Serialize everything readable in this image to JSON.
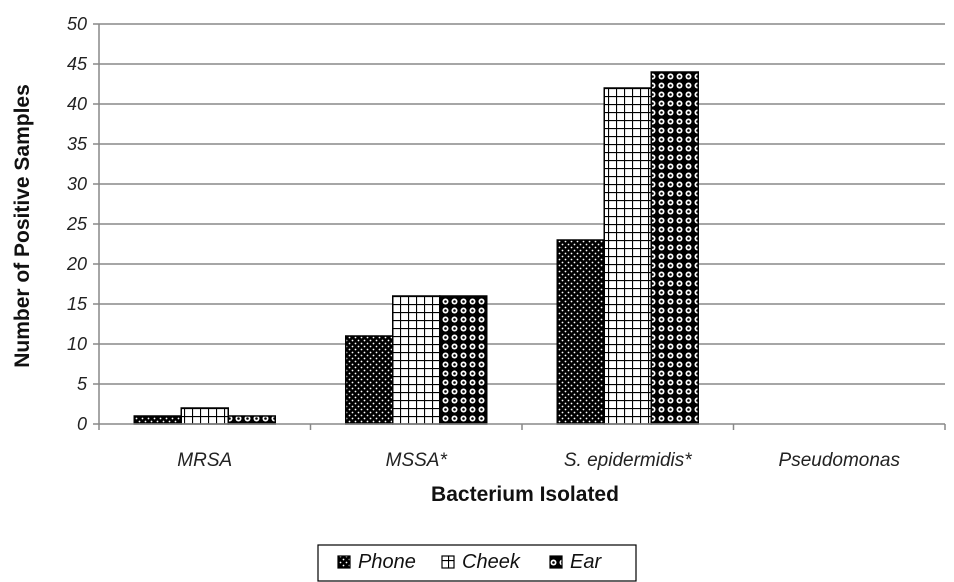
{
  "chart_data": {
    "type": "bar",
    "title": "",
    "xlabel": "Bacterium Isolated",
    "ylabel": "Number of Positive Samples",
    "categories": [
      "MRSA",
      "MSSA*",
      "S. epidermidis*",
      "Pseudomonas"
    ],
    "series": [
      {
        "name": "Phone",
        "values": [
          1,
          11,
          23,
          0
        ],
        "pattern": "dots",
        "color": "#000000"
      },
      {
        "name": "Cheek",
        "values": [
          2,
          16,
          42,
          0
        ],
        "pattern": "grid",
        "color": "#000000"
      },
      {
        "name": "Ear",
        "values": [
          1,
          16,
          44,
          0
        ],
        "pattern": "circles",
        "color": "#000000"
      }
    ],
    "ylim": [
      0,
      50
    ],
    "yticks": [
      0,
      5,
      10,
      15,
      20,
      25,
      30,
      35,
      40,
      45,
      50
    ],
    "grid": true,
    "legend": "bottom"
  }
}
